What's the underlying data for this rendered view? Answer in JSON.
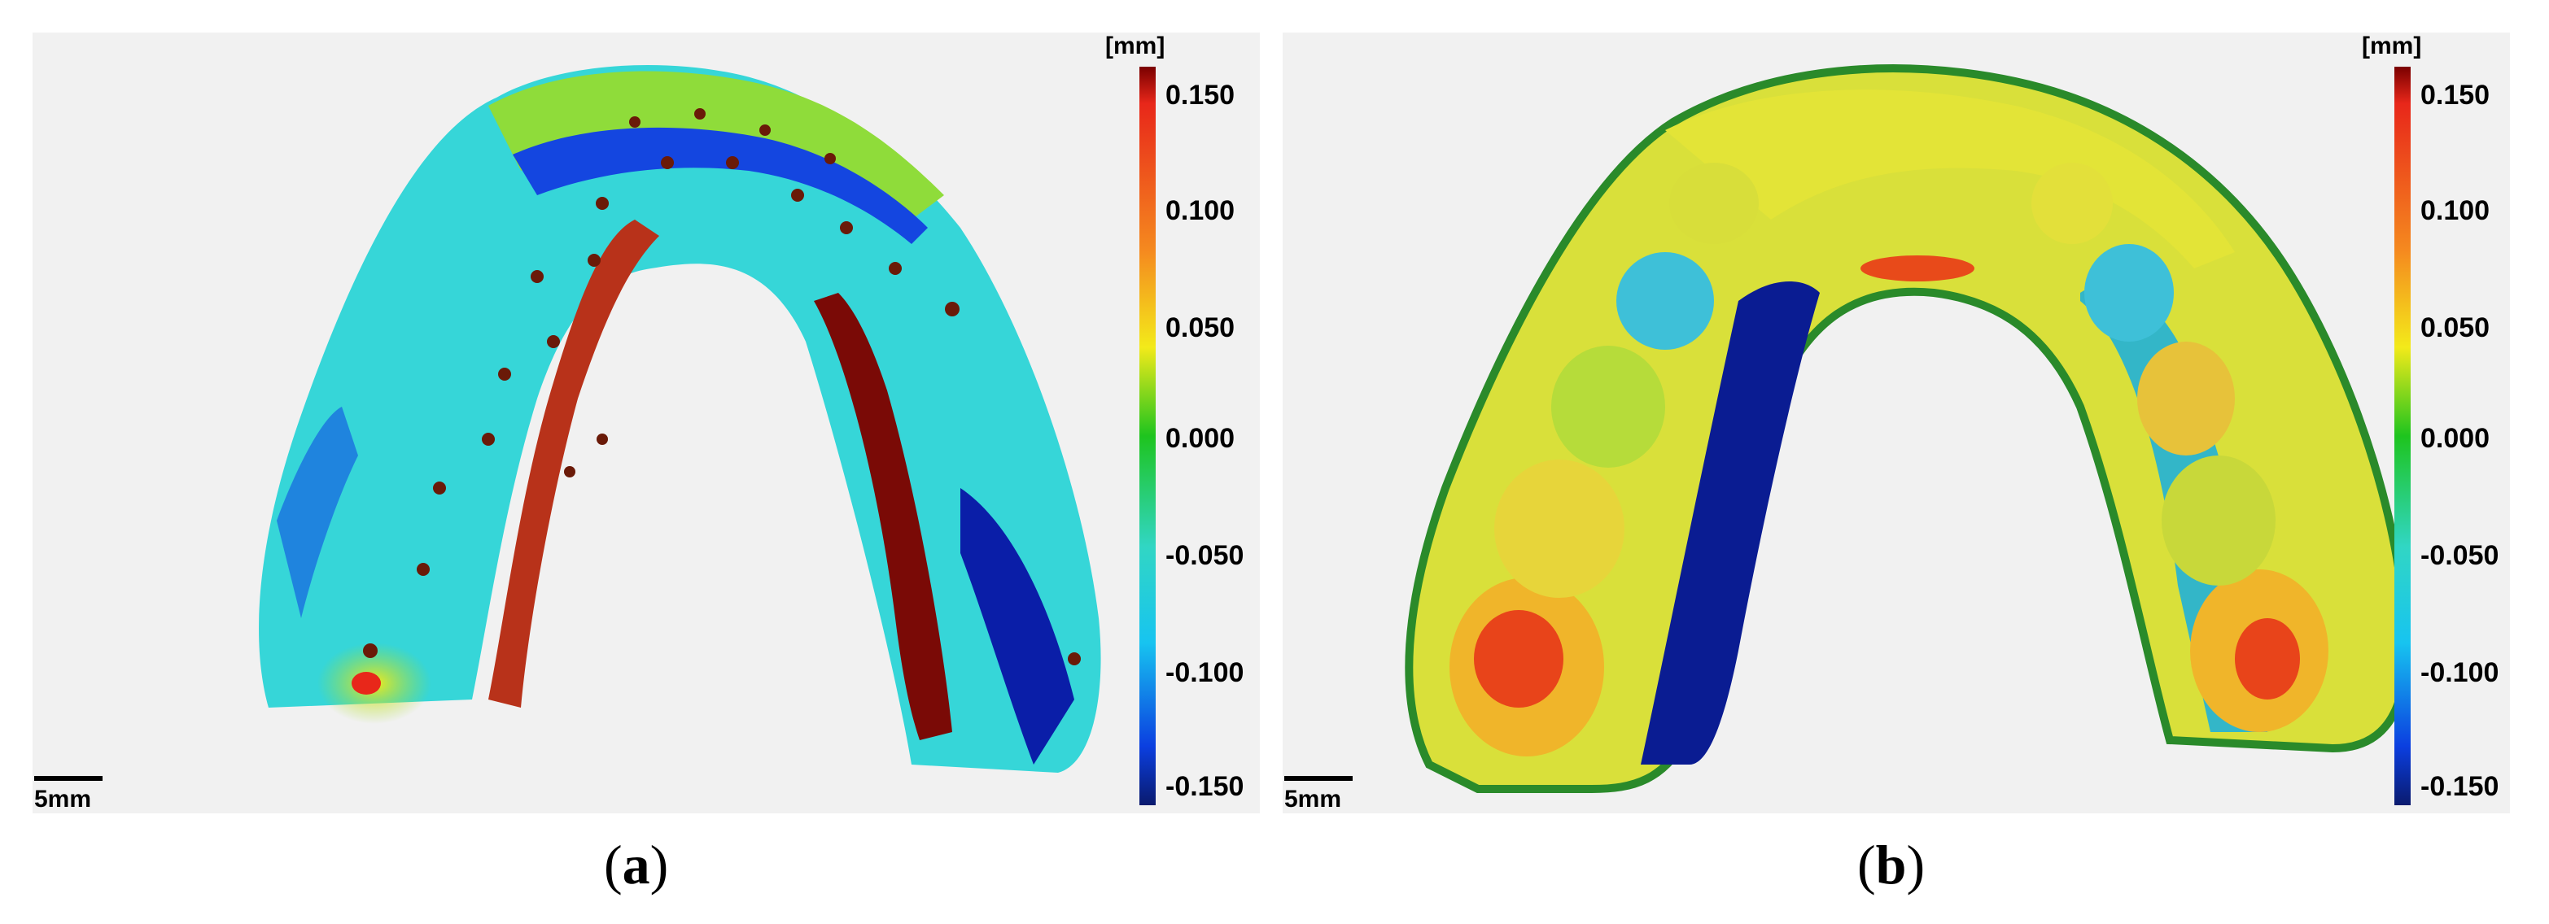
{
  "panel_a": {
    "caption_letter": "a",
    "colorbar": {
      "unit": "[mm]",
      "ticks": [
        "0.150",
        "0.100",
        "0.050",
        "0.000",
        "-0.050",
        "-0.100",
        "-0.150"
      ]
    },
    "scale_bar_label": "5mm"
  },
  "panel_b": {
    "caption_letter": "b",
    "colorbar": {
      "unit": "[mm]",
      "ticks": [
        "0.150",
        "0.100",
        "0.050",
        "0.000",
        "-0.050",
        "-0.100",
        "-0.150"
      ]
    },
    "scale_bar_label": "5mm"
  },
  "colors": {
    "background": "#f1f1f1",
    "colormap": [
      "#7a0000",
      "#e8271a",
      "#f58a1f",
      "#f3ea1a",
      "#9fdc2a",
      "#1ec41e",
      "#31d6c4",
      "#17c4f0",
      "#0b6fe0",
      "#0a1ea8",
      "#0a1a6e"
    ]
  }
}
